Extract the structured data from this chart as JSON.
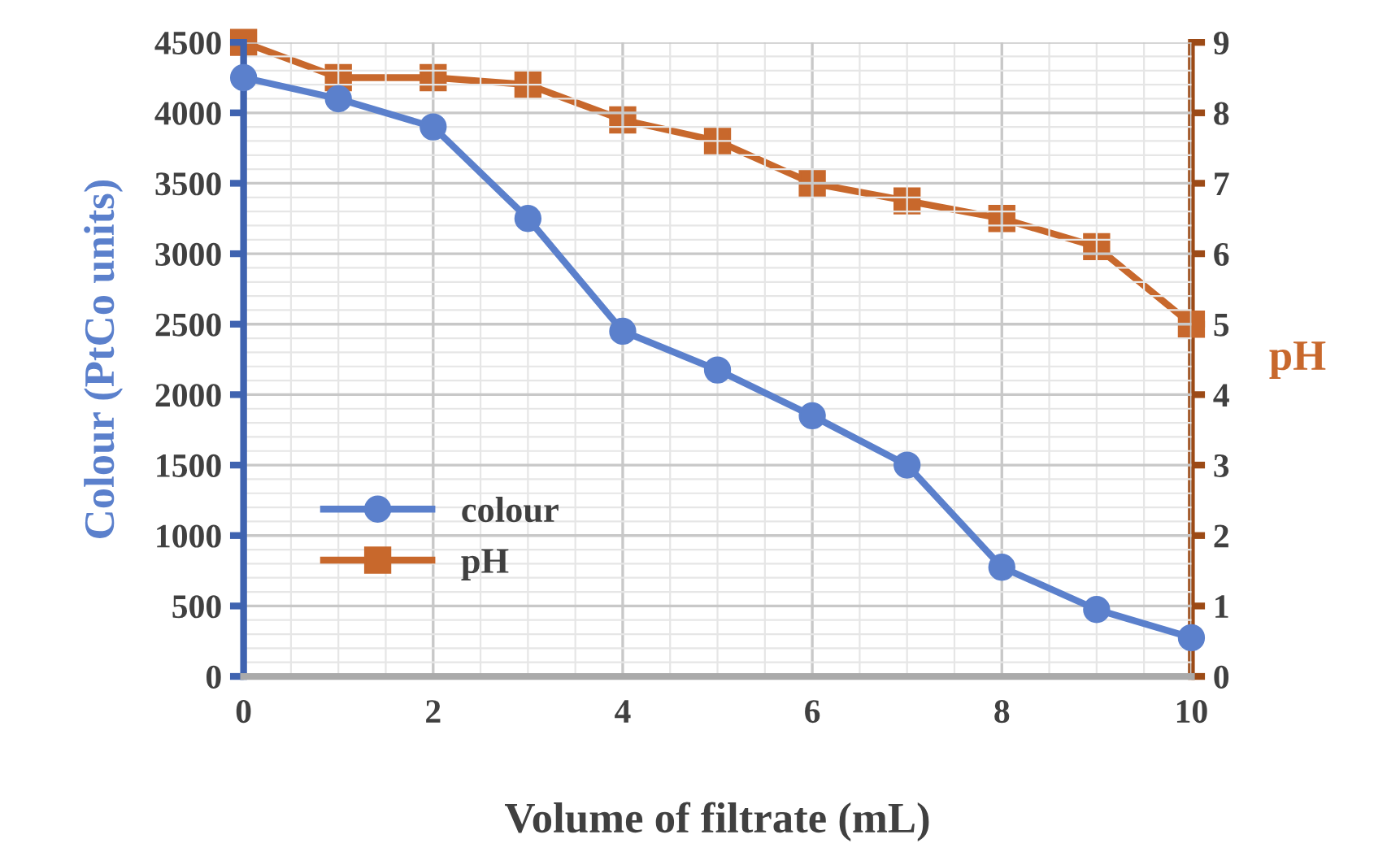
{
  "chart_data": {
    "type": "line",
    "xlabel": "Volume of filtrate (mL)",
    "ylabel": "Colour (PtCo units)",
    "y2label": "pH",
    "x": [
      0,
      1,
      2,
      3,
      4,
      5,
      6,
      7,
      8,
      9,
      10
    ],
    "series": [
      {
        "name": "colour",
        "color": "#5b80cc",
        "marker": "circle",
        "values": [
          4250,
          4100,
          3900,
          3250,
          2450,
          2175,
          1850,
          1500,
          775,
          475,
          275
        ]
      },
      {
        "name": "pH",
        "color": "#c8682c",
        "marker": "square",
        "axis": "y2",
        "values": [
          9.0,
          8.5,
          8.5,
          8.4,
          7.9,
          7.6,
          7.0,
          6.75,
          6.5,
          6.1,
          5.0
        ]
      }
    ],
    "xlim": [
      0,
      10
    ],
    "xticks": [
      0,
      2,
      4,
      6,
      8,
      10
    ],
    "ylim": [
      0,
      4500
    ],
    "yticks": [
      0,
      500,
      1000,
      1500,
      2000,
      2500,
      3000,
      3500,
      4000,
      4500
    ],
    "y2lim": [
      0,
      9
    ],
    "y2ticks": [
      0,
      1,
      2,
      3,
      4,
      5,
      6,
      7,
      8,
      9
    ],
    "grid": true,
    "legend": "bottom left",
    "line_style": "solid"
  }
}
